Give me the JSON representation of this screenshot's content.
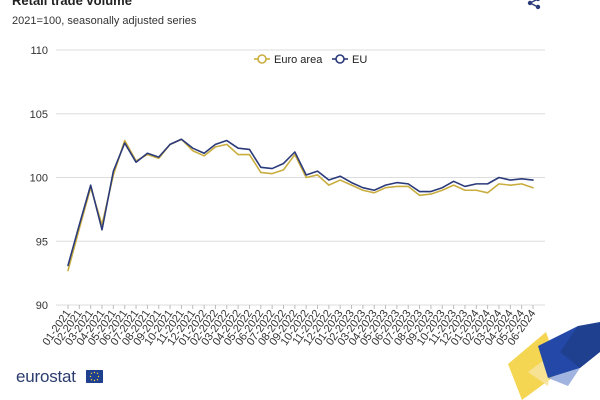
{
  "header": {
    "title": "Retail trade volume",
    "subtitle": "2021=100, seasonally adjusted series",
    "share_icon": "share-icon"
  },
  "footer": {
    "logo_text": "eurostat",
    "flag_icon": "eu-flag-icon"
  },
  "colors": {
    "euro_area": "#c9ad3f",
    "eu": "#2b3a7a",
    "grid": "#dddddd",
    "brand_blue": "#1f3f8f",
    "brand_yellow": "#f2cf35"
  },
  "chart_data": {
    "type": "line",
    "title": "Retail trade volume",
    "subtitle": "2021=100, seasonally adjusted series",
    "ylim": [
      90,
      110
    ],
    "yticks": [
      90,
      95,
      100,
      105,
      110
    ],
    "grid": true,
    "legend_position": "top-center",
    "categories": [
      "01-2021",
      "02-2021",
      "03-2021",
      "04-2021",
      "05-2021",
      "06-2021",
      "07-2021",
      "08-2021",
      "09-2021",
      "10-2021",
      "11-2021",
      "12-2021",
      "01-2022",
      "02-2022",
      "03-2022",
      "04-2022",
      "05-2022",
      "06-2022",
      "07-2022",
      "08-2022",
      "09-2022",
      "10-2022",
      "11-2022",
      "12-2022",
      "01-2023",
      "02-2023",
      "03-2023",
      "04-2023",
      "05-2023",
      "06-2023",
      "07-2023",
      "08-2023",
      "09-2023",
      "10-2023",
      "11-2023",
      "12-2023",
      "01-2024",
      "02-2024",
      "03-2024",
      "04-2024",
      "05-2024",
      "06-2024"
    ],
    "series": [
      {
        "name": "Euro area",
        "color": "#c9ad3f",
        "marker": "circle-open",
        "values": [
          92.7,
          96.0,
          99.2,
          96.3,
          100.2,
          102.9,
          101.3,
          101.8,
          101.5,
          102.6,
          103.0,
          102.1,
          101.7,
          102.4,
          102.6,
          101.8,
          101.8,
          100.4,
          100.3,
          100.6,
          101.8,
          100.0,
          100.2,
          99.4,
          99.8,
          99.4,
          99.0,
          98.8,
          99.2,
          99.3,
          99.3,
          98.6,
          98.7,
          99.0,
          99.4,
          99.0,
          99.0,
          98.8,
          99.5,
          99.4,
          99.5,
          99.2
        ]
      },
      {
        "name": "EU",
        "color": "#2b3a7a",
        "marker": "circle-open",
        "values": [
          93.1,
          96.3,
          99.4,
          95.9,
          100.5,
          102.7,
          101.2,
          101.9,
          101.6,
          102.6,
          103.0,
          102.3,
          101.9,
          102.6,
          102.9,
          102.3,
          102.2,
          100.8,
          100.7,
          101.1,
          102.0,
          100.2,
          100.5,
          99.8,
          100.1,
          99.6,
          99.2,
          99.0,
          99.4,
          99.6,
          99.5,
          98.9,
          98.9,
          99.2,
          99.7,
          99.3,
          99.5,
          99.5,
          100.0,
          99.8,
          99.9,
          99.8
        ]
      }
    ]
  }
}
